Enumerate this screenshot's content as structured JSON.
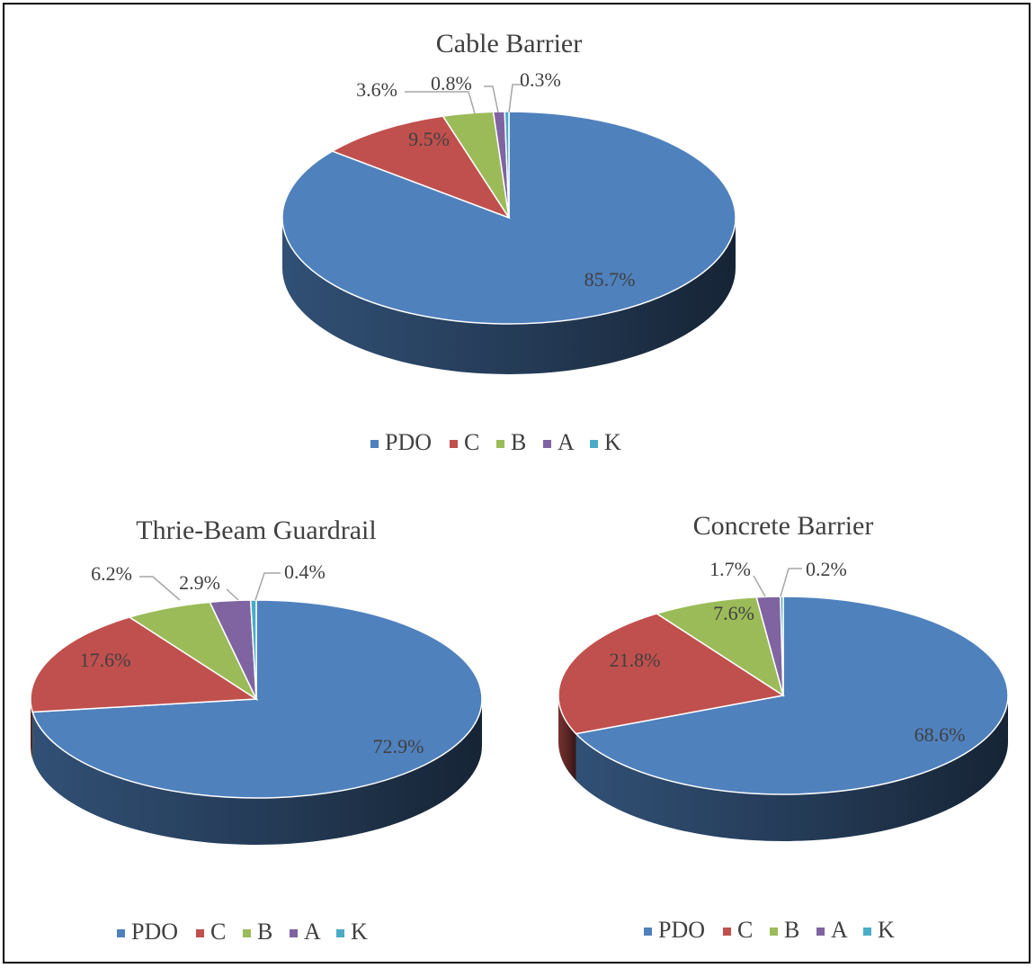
{
  "chart_data": [
    {
      "type": "pie",
      "title": "Cable Barrier",
      "categories": [
        "PDO",
        "C",
        "B",
        "A",
        "K"
      ],
      "values": [
        85.7,
        9.5,
        3.6,
        0.8,
        0.3
      ],
      "labels": [
        "85.7%",
        "9.5%",
        "3.6%",
        "0.8%",
        "0.3%"
      ],
      "legend": "bottom",
      "three_d": true
    },
    {
      "type": "pie",
      "title": "Thrie-Beam Guardrail",
      "categories": [
        "PDO",
        "C",
        "B",
        "A",
        "K"
      ],
      "values": [
        72.9,
        17.6,
        6.2,
        2.9,
        0.4
      ],
      "labels": [
        "72.9%",
        "17.6%",
        "6.2%",
        "2.9%",
        "0.4%"
      ],
      "legend": "bottom",
      "three_d": true
    },
    {
      "type": "pie",
      "title": "Concrete Barrier",
      "categories": [
        "PDO",
        "C",
        "B",
        "A",
        "K"
      ],
      "values": [
        68.6,
        21.8,
        7.6,
        1.7,
        0.2
      ],
      "labels": [
        "68.6%",
        "21.8%",
        "7.6%",
        "1.7%",
        "0.2%"
      ],
      "legend": "bottom",
      "three_d": true
    }
  ],
  "colors": {
    "PDO": "#4f81bd",
    "C": "#c0504d",
    "B": "#9bbb59",
    "A": "#8064a2",
    "K": "#4bacc6",
    "side_dark": "#1d3557"
  }
}
